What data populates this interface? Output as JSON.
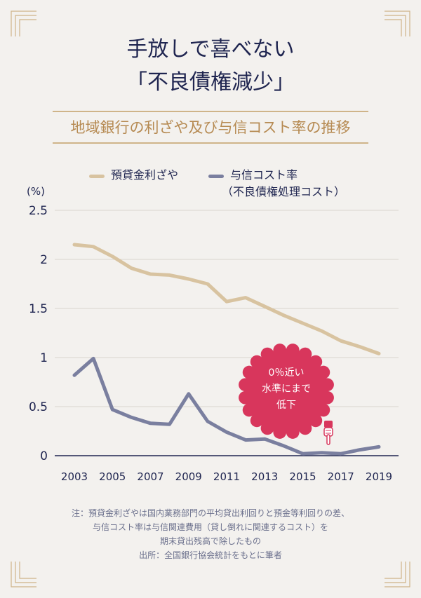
{
  "title_line1": "手放しで喜べない",
  "title_line2": "「不良債権減少」",
  "subtitle": "地域銀行の利ざや及び与信コスト率の推移",
  "legend": {
    "series1": "預貸金利ざや",
    "series2_line1": "与信コスト率",
    "series2_line2": "（不良債権処理コスト）"
  },
  "callout": {
    "line1": "0％近い",
    "line2": "水準にまで",
    "line3": "低下",
    "hand_icon": "pointing-hand-icon"
  },
  "notes": [
    "注：預貸金利ざやは国内業務部門の平均貸出利回りと預金等利回りの差、",
    "与信コスト率は与信関連費用（貸し倒れに関連するコスト）を",
    "期末貸出残高で除したもの",
    "出所：全国銀行協会統計をもとに筆者"
  ],
  "colors": {
    "series1": "#d8c3a0",
    "series2": "#7a7f9f",
    "callout": "#d8365c",
    "accent": "#cfb489",
    "text": "#1f2550"
  },
  "chart_data": {
    "type": "line",
    "ylabel": "(%)",
    "ylim": [
      0,
      2.5
    ],
    "yticks": [
      "2.5",
      "2",
      "1.5",
      "1",
      "0.5",
      "0"
    ],
    "x": [
      2003,
      2004,
      2005,
      2006,
      2007,
      2008,
      2009,
      2010,
      2011,
      2012,
      2013,
      2014,
      2015,
      2016,
      2017,
      2018,
      2019
    ],
    "xtick_labels": [
      "2003",
      "2005",
      "2007",
      "2009",
      "2011",
      "2013",
      "2015",
      "2017",
      "2019"
    ],
    "grid": "horizontal",
    "series": [
      {
        "name": "預貸金利ざや",
        "values": [
          2.15,
          2.13,
          2.03,
          1.91,
          1.85,
          1.84,
          1.8,
          1.75,
          1.57,
          1.61,
          1.52,
          1.43,
          1.35,
          1.27,
          1.17,
          1.11,
          1.04
        ]
      },
      {
        "name": "与信コスト率（不良債権処理コスト）",
        "values": [
          0.82,
          0.99,
          0.47,
          0.39,
          0.33,
          0.32,
          0.63,
          0.35,
          0.24,
          0.16,
          0.17,
          0.1,
          0.02,
          0.03,
          0.02,
          0.06,
          0.09
        ]
      }
    ]
  }
}
